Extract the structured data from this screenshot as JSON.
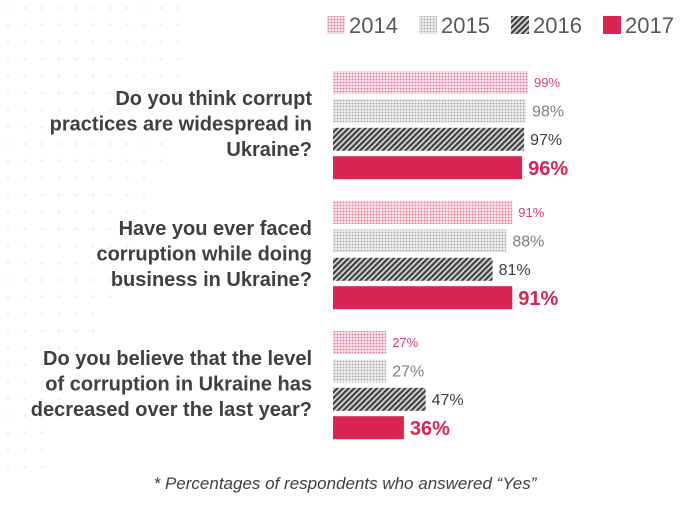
{
  "chart_data": {
    "type": "bar",
    "orientation": "horizontal",
    "categories": [
      [
        "Do you think corrupt",
        "practices are widespread in",
        "Ukraine?"
      ],
      [
        "Have you ever faced",
        "corruption while doing",
        "business in Ukraine?"
      ],
      [
        "Do you believe that the level",
        "of corruption in Ukraine has",
        "decreased over the last year?"
      ]
    ],
    "series": [
      {
        "name": "2014",
        "values": [
          99,
          91,
          27
        ],
        "labels": [
          "99%",
          "91%",
          "27%"
        ],
        "color": "#e3708f",
        "pattern": "dots"
      },
      {
        "name": "2015",
        "values": [
          98,
          88,
          27
        ],
        "labels": [
          "98%",
          "88%",
          "27%"
        ],
        "color": "#a6a6a6",
        "pattern": "dots"
      },
      {
        "name": "2016",
        "values": [
          97,
          81,
          47
        ],
        "labels": [
          "97%",
          "81%",
          "47%"
        ],
        "color": "#404040",
        "pattern": "diagonal"
      },
      {
        "name": "2017",
        "values": [
          96,
          91,
          36
        ],
        "labels": [
          "96%",
          "91%",
          "36%"
        ],
        "color": "#d92552",
        "pattern": "solid"
      }
    ],
    "label_colors": [
      "#d9406b",
      "#7f7f7f",
      "#404040",
      "#d92552"
    ],
    "xlim": [
      0,
      100
    ],
    "legend_position": "top-right",
    "title": "",
    "xlabel": "",
    "ylabel": ""
  },
  "footnote": "* Percentages of respondents who answered “Yes”"
}
